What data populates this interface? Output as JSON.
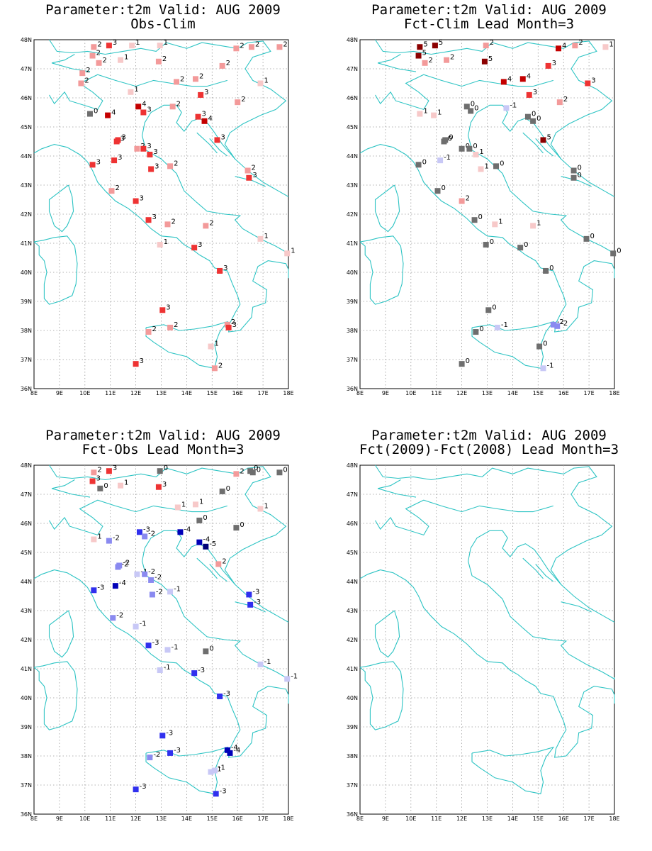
{
  "colors": {
    "coast": "#2ec4c4",
    "grid": "#9a9a9a",
    "pos1": "#f7c9c9",
    "pos2": "#f39a9a",
    "pos3": "#ee3333",
    "pos4": "#c40000",
    "pos5": "#8b0000",
    "zero": "#6e6e6e",
    "neg1": "#c8c8f6",
    "neg2": "#8a8af0",
    "neg3": "#3030ee",
    "neg4": "#0000b8",
    "neg5": "#000078"
  },
  "axes": {
    "lon_ticks": [
      "8E",
      "9E",
      "10E",
      "11E",
      "12E",
      "13E",
      "14E",
      "15E",
      "16E",
      "17E",
      "18E"
    ],
    "lat_ticks": [
      "48N",
      "47N",
      "46N",
      "45N",
      "44N",
      "43N",
      "42N",
      "41N",
      "40N",
      "39N",
      "38N",
      "37N",
      "36N"
    ],
    "lon_range": [
      8,
      18
    ],
    "lat_range": [
      36,
      48
    ]
  },
  "panels": [
    {
      "title_line1": "Parameter:t2m Valid: AUG 2009",
      "title_line2": "Obs-Clim",
      "chart_data": {
        "type": "scatter",
        "points": [
          {
            "lon": 10.35,
            "lat": 47.75,
            "v": 2
          },
          {
            "lon": 10.95,
            "lat": 47.8,
            "v": 3
          },
          {
            "lon": 11.85,
            "lat": 47.8,
            "v": 1
          },
          {
            "lon": 12.95,
            "lat": 47.8,
            "v": 1
          },
          {
            "lon": 15.95,
            "lat": 47.7,
            "v": 2
          },
          {
            "lon": 16.55,
            "lat": 47.75,
            "v": 2
          },
          {
            "lon": 17.65,
            "lat": 47.75,
            "v": 2
          },
          {
            "lon": 10.3,
            "lat": 47.45,
            "v": 2
          },
          {
            "lon": 10.55,
            "lat": 47.2,
            "v": 2
          },
          {
            "lon": 11.4,
            "lat": 47.3,
            "v": 1
          },
          {
            "lon": 12.9,
            "lat": 47.25,
            "v": 2
          },
          {
            "lon": 15.4,
            "lat": 47.1,
            "v": 2
          },
          {
            "lon": 9.9,
            "lat": 46.85,
            "v": 2
          },
          {
            "lon": 9.85,
            "lat": 46.5,
            "v": 2
          },
          {
            "lon": 13.6,
            "lat": 46.55,
            "v": 2
          },
          {
            "lon": 14.35,
            "lat": 46.65,
            "v": 2
          },
          {
            "lon": 16.9,
            "lat": 46.5,
            "v": 1
          },
          {
            "lon": 11.8,
            "lat": 46.2,
            "v": 1
          },
          {
            "lon": 14.55,
            "lat": 46.1,
            "v": 3
          },
          {
            "lon": 16.0,
            "lat": 45.85,
            "v": 2
          },
          {
            "lon": 12.1,
            "lat": 45.7,
            "v": 4
          },
          {
            "lon": 13.45,
            "lat": 45.7,
            "v": 2
          },
          {
            "lon": 12.3,
            "lat": 45.5,
            "v": 3
          },
          {
            "lon": 10.2,
            "lat": 45.45,
            "v": 0
          },
          {
            "lon": 10.9,
            "lat": 45.4,
            "v": 4
          },
          {
            "lon": 14.45,
            "lat": 45.35,
            "v": 3
          },
          {
            "lon": 14.7,
            "lat": 45.2,
            "v": 4
          },
          {
            "lon": 11.3,
            "lat": 44.55,
            "v": 3
          },
          {
            "lon": 11.25,
            "lat": 44.5,
            "v": 3
          },
          {
            "lon": 15.2,
            "lat": 44.55,
            "v": 3
          },
          {
            "lon": 12.05,
            "lat": 44.25,
            "v": 2
          },
          {
            "lon": 12.3,
            "lat": 44.25,
            "v": 3
          },
          {
            "lon": 12.55,
            "lat": 44.05,
            "v": 3
          },
          {
            "lon": 11.15,
            "lat": 43.85,
            "v": 3
          },
          {
            "lon": 10.3,
            "lat": 43.7,
            "v": 3
          },
          {
            "lon": 13.35,
            "lat": 43.65,
            "v": 2
          },
          {
            "lon": 12.6,
            "lat": 43.55,
            "v": 3
          },
          {
            "lon": 16.4,
            "lat": 43.5,
            "v": 2
          },
          {
            "lon": 16.45,
            "lat": 43.25,
            "v": 3
          },
          {
            "lon": 11.05,
            "lat": 42.8,
            "v": 2
          },
          {
            "lon": 12.0,
            "lat": 42.45,
            "v": 3
          },
          {
            "lon": 12.5,
            "lat": 41.8,
            "v": 3
          },
          {
            "lon": 13.25,
            "lat": 41.65,
            "v": 2
          },
          {
            "lon": 14.75,
            "lat": 41.6,
            "v": 2
          },
          {
            "lon": 16.9,
            "lat": 41.15,
            "v": 1
          },
          {
            "lon": 12.95,
            "lat": 40.95,
            "v": 1
          },
          {
            "lon": 14.3,
            "lat": 40.85,
            "v": 3
          },
          {
            "lon": 17.95,
            "lat": 40.65,
            "v": 1
          },
          {
            "lon": 15.3,
            "lat": 40.05,
            "v": 3
          },
          {
            "lon": 13.05,
            "lat": 38.7,
            "v": 3
          },
          {
            "lon": 13.35,
            "lat": 38.1,
            "v": 2
          },
          {
            "lon": 15.6,
            "lat": 38.2,
            "v": 2
          },
          {
            "lon": 15.65,
            "lat": 38.1,
            "v": 3
          },
          {
            "lon": 12.5,
            "lat": 37.95,
            "v": 2
          },
          {
            "lon": 14.95,
            "lat": 37.45,
            "v": 1
          },
          {
            "lon": 15.1,
            "lat": 36.7,
            "v": 2
          },
          {
            "lon": 12.0,
            "lat": 36.85,
            "v": 3
          }
        ]
      }
    },
    {
      "title_line1": "Parameter:t2m Valid: AUG 2009",
      "title_line2": "Fct-Clim Lead Month=3",
      "chart_data": {
        "type": "scatter",
        "points": [
          {
            "lon": 10.35,
            "lat": 47.75,
            "v": 5
          },
          {
            "lon": 10.95,
            "lat": 47.8,
            "v": 5
          },
          {
            "lon": 12.95,
            "lat": 47.8,
            "v": 2
          },
          {
            "lon": 15.8,
            "lat": 47.7,
            "v": 4
          },
          {
            "lon": 16.45,
            "lat": 47.8,
            "v": 2
          },
          {
            "lon": 17.65,
            "lat": 47.75,
            "v": 1
          },
          {
            "lon": 10.3,
            "lat": 47.45,
            "v": 5
          },
          {
            "lon": 10.55,
            "lat": 47.2,
            "v": 2
          },
          {
            "lon": 11.4,
            "lat": 47.3,
            "v": 2
          },
          {
            "lon": 12.9,
            "lat": 47.25,
            "v": 5
          },
          {
            "lon": 15.4,
            "lat": 47.1,
            "v": 3
          },
          {
            "lon": 14.4,
            "lat": 46.65,
            "v": 4
          },
          {
            "lon": 13.65,
            "lat": 46.55,
            "v": 4
          },
          {
            "lon": 16.95,
            "lat": 46.5,
            "v": 3
          },
          {
            "lon": 14.65,
            "lat": 46.1,
            "v": 3
          },
          {
            "lon": 15.85,
            "lat": 45.85,
            "v": 2
          },
          {
            "lon": 12.2,
            "lat": 45.7,
            "v": 0
          },
          {
            "lon": 13.75,
            "lat": 45.65,
            "v": -1
          },
          {
            "lon": 12.35,
            "lat": 45.55,
            "v": 0
          },
          {
            "lon": 10.35,
            "lat": 45.45,
            "v": 1
          },
          {
            "lon": 10.9,
            "lat": 45.4,
            "v": 1
          },
          {
            "lon": 14.6,
            "lat": 45.35,
            "v": 0
          },
          {
            "lon": 14.8,
            "lat": 45.2,
            "v": 0
          },
          {
            "lon": 11.35,
            "lat": 44.55,
            "v": 0
          },
          {
            "lon": 11.3,
            "lat": 44.5,
            "v": 0
          },
          {
            "lon": 15.2,
            "lat": 44.55,
            "v": 5
          },
          {
            "lon": 12.0,
            "lat": 44.25,
            "v": 0
          },
          {
            "lon": 12.3,
            "lat": 44.25,
            "v": 0
          },
          {
            "lon": 12.55,
            "lat": 44.05,
            "v": 1
          },
          {
            "lon": 11.15,
            "lat": 43.85,
            "v": -1
          },
          {
            "lon": 10.3,
            "lat": 43.7,
            "v": 0
          },
          {
            "lon": 13.35,
            "lat": 43.65,
            "v": 0
          },
          {
            "lon": 12.75,
            "lat": 43.55,
            "v": 1
          },
          {
            "lon": 16.4,
            "lat": 43.5,
            "v": 0
          },
          {
            "lon": 16.4,
            "lat": 43.25,
            "v": 0
          },
          {
            "lon": 11.05,
            "lat": 42.8,
            "v": 0
          },
          {
            "lon": 12.0,
            "lat": 42.45,
            "v": 2
          },
          {
            "lon": 12.5,
            "lat": 41.8,
            "v": 0
          },
          {
            "lon": 13.3,
            "lat": 41.65,
            "v": 1
          },
          {
            "lon": 14.8,
            "lat": 41.6,
            "v": 1
          },
          {
            "lon": 16.9,
            "lat": 41.15,
            "v": 0
          },
          {
            "lon": 12.95,
            "lat": 40.95,
            "v": 0
          },
          {
            "lon": 14.3,
            "lat": 40.85,
            "v": 0
          },
          {
            "lon": 17.95,
            "lat": 40.65,
            "v": 0
          },
          {
            "lon": 15.3,
            "lat": 40.05,
            "v": 0
          },
          {
            "lon": 13.05,
            "lat": 38.7,
            "v": 0
          },
          {
            "lon": 13.4,
            "lat": 38.1,
            "v": -1
          },
          {
            "lon": 15.6,
            "lat": 38.2,
            "v": -2
          },
          {
            "lon": 15.75,
            "lat": 38.15,
            "v": -2
          },
          {
            "lon": 12.55,
            "lat": 37.95,
            "v": 0
          },
          {
            "lon": 15.05,
            "lat": 37.45,
            "v": 0
          },
          {
            "lon": 15.2,
            "lat": 36.7,
            "v": -1
          },
          {
            "lon": 12.0,
            "lat": 36.85,
            "v": 0
          }
        ]
      }
    },
    {
      "title_line1": "Parameter:t2m Valid: AUG 2009",
      "title_line2": "Fct-Obs Lead Month=3",
      "chart_data": {
        "type": "scatter",
        "points": [
          {
            "lon": 10.35,
            "lat": 47.75,
            "v": 2
          },
          {
            "lon": 10.95,
            "lat": 47.8,
            "v": 3
          },
          {
            "lon": 12.95,
            "lat": 47.8,
            "v": 0
          },
          {
            "lon": 15.95,
            "lat": 47.7,
            "v": 2
          },
          {
            "lon": 16.5,
            "lat": 47.8,
            "v": 0
          },
          {
            "lon": 16.6,
            "lat": 47.75,
            "v": 0
          },
          {
            "lon": 17.65,
            "lat": 47.75,
            "v": 0
          },
          {
            "lon": 10.3,
            "lat": 47.45,
            "v": 3
          },
          {
            "lon": 10.6,
            "lat": 47.2,
            "v": 0
          },
          {
            "lon": 11.4,
            "lat": 47.3,
            "v": 1
          },
          {
            "lon": 12.9,
            "lat": 47.25,
            "v": 3
          },
          {
            "lon": 15.4,
            "lat": 47.1,
            "v": 0
          },
          {
            "lon": 13.65,
            "lat": 46.55,
            "v": 1
          },
          {
            "lon": 14.35,
            "lat": 46.65,
            "v": 1
          },
          {
            "lon": 16.9,
            "lat": 46.5,
            "v": 1
          },
          {
            "lon": 14.5,
            "lat": 46.1,
            "v": 0
          },
          {
            "lon": 15.95,
            "lat": 45.85,
            "v": 0
          },
          {
            "lon": 12.15,
            "lat": 45.7,
            "v": -3
          },
          {
            "lon": 13.75,
            "lat": 45.7,
            "v": -4
          },
          {
            "lon": 12.35,
            "lat": 45.55,
            "v": -2
          },
          {
            "lon": 10.35,
            "lat": 45.45,
            "v": 1
          },
          {
            "lon": 10.95,
            "lat": 45.4,
            "v": -2
          },
          {
            "lon": 14.5,
            "lat": 45.35,
            "v": -4
          },
          {
            "lon": 14.75,
            "lat": 45.2,
            "v": -5
          },
          {
            "lon": 15.25,
            "lat": 44.6,
            "v": 2
          },
          {
            "lon": 11.35,
            "lat": 44.55,
            "v": -2
          },
          {
            "lon": 11.3,
            "lat": 44.5,
            "v": -2
          },
          {
            "lon": 12.05,
            "lat": 44.25,
            "v": -1
          },
          {
            "lon": 12.35,
            "lat": 44.25,
            "v": -2
          },
          {
            "lon": 12.6,
            "lat": 44.05,
            "v": -2
          },
          {
            "lon": 11.2,
            "lat": 43.85,
            "v": -4
          },
          {
            "lon": 10.35,
            "lat": 43.7,
            "v": -3
          },
          {
            "lon": 13.35,
            "lat": 43.65,
            "v": -1
          },
          {
            "lon": 12.65,
            "lat": 43.55,
            "v": -2
          },
          {
            "lon": 16.45,
            "lat": 43.55,
            "v": -3
          },
          {
            "lon": 16.5,
            "lat": 43.2,
            "v": -3
          },
          {
            "lon": 11.1,
            "lat": 42.75,
            "v": -2
          },
          {
            "lon": 12.0,
            "lat": 42.45,
            "v": -1
          },
          {
            "lon": 12.5,
            "lat": 41.8,
            "v": -3
          },
          {
            "lon": 13.25,
            "lat": 41.65,
            "v": -1
          },
          {
            "lon": 14.75,
            "lat": 41.6,
            "v": 0
          },
          {
            "lon": 16.9,
            "lat": 41.15,
            "v": -1
          },
          {
            "lon": 12.95,
            "lat": 40.95,
            "v": -1
          },
          {
            "lon": 14.3,
            "lat": 40.85,
            "v": -3
          },
          {
            "lon": 17.95,
            "lat": 40.65,
            "v": -1
          },
          {
            "lon": 15.3,
            "lat": 40.05,
            "v": -3
          },
          {
            "lon": 13.05,
            "lat": 38.7,
            "v": -3
          },
          {
            "lon": 13.35,
            "lat": 38.1,
            "v": -3
          },
          {
            "lon": 15.6,
            "lat": 38.2,
            "v": -4
          },
          {
            "lon": 15.7,
            "lat": 38.1,
            "v": -4
          },
          {
            "lon": 12.55,
            "lat": 37.95,
            "v": -2
          },
          {
            "lon": 14.95,
            "lat": 37.45,
            "v": -1
          },
          {
            "lon": 15.1,
            "lat": 37.5,
            "v": -1
          },
          {
            "lon": 15.15,
            "lat": 36.7,
            "v": -3
          },
          {
            "lon": 12.0,
            "lat": 36.85,
            "v": -3
          }
        ]
      }
    },
    {
      "title_line1": "Parameter:t2m Valid: AUG 2009",
      "title_line2": "Fct(2009)-Fct(2008) Lead Month=3",
      "chart_data": {
        "type": "scatter",
        "points": []
      }
    }
  ]
}
